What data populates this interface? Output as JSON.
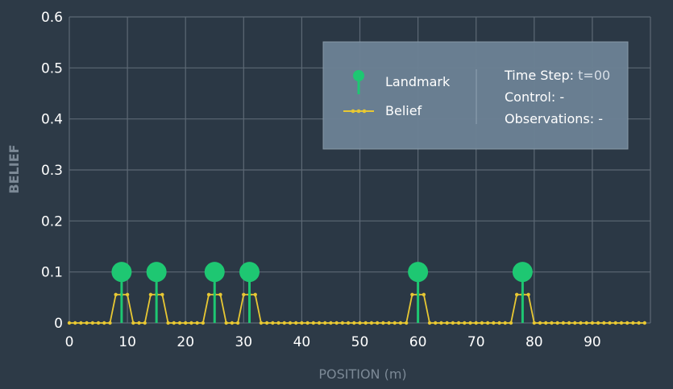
{
  "chart_data": {
    "type": "line",
    "xlabel": "POSITION (m)",
    "ylabel": "BELIEF",
    "xlim": [
      0,
      100
    ],
    "ylim": [
      0,
      0.6
    ],
    "x_ticks": [
      0,
      10,
      20,
      30,
      40,
      50,
      60,
      70,
      80,
      90
    ],
    "y_ticks": [
      0,
      0.1,
      0.2,
      0.3,
      0.4,
      0.5,
      0.6
    ],
    "y_tick_labels": [
      "0",
      "0.1",
      "0.2",
      "0.3",
      "0.4",
      "0.5",
      "0.6"
    ],
    "grid": true,
    "legend_position": "top-right",
    "series": [
      {
        "name": "Belief",
        "color": "#e8c833",
        "x": [
          0,
          1,
          2,
          3,
          4,
          5,
          6,
          7,
          8,
          9,
          10,
          11,
          12,
          13,
          14,
          15,
          16,
          17,
          18,
          19,
          20,
          21,
          22,
          23,
          24,
          25,
          26,
          27,
          28,
          29,
          30,
          31,
          32,
          33,
          34,
          35,
          36,
          37,
          38,
          39,
          40,
          41,
          42,
          43,
          44,
          45,
          46,
          47,
          48,
          49,
          50,
          51,
          52,
          53,
          54,
          55,
          56,
          57,
          58,
          59,
          60,
          61,
          62,
          63,
          64,
          65,
          66,
          67,
          68,
          69,
          70,
          71,
          72,
          73,
          74,
          75,
          76,
          77,
          78,
          79,
          80,
          81,
          82,
          83,
          84,
          85,
          86,
          87,
          88,
          89,
          90,
          91,
          92,
          93,
          94,
          95,
          96,
          97,
          98,
          99
        ],
        "values": [
          0,
          0,
          0,
          0,
          0,
          0,
          0,
          0,
          0.0556,
          0.0556,
          0.0556,
          0,
          0,
          0,
          0.0556,
          0.0556,
          0.0556,
          0,
          0,
          0,
          0,
          0,
          0,
          0,
          0.0556,
          0.0556,
          0.0556,
          0,
          0,
          0,
          0.0556,
          0.0556,
          0.0556,
          0,
          0,
          0,
          0,
          0,
          0,
          0,
          0,
          0,
          0,
          0,
          0,
          0,
          0,
          0,
          0,
          0,
          0,
          0,
          0,
          0,
          0,
          0,
          0,
          0,
          0,
          0.0556,
          0.0556,
          0.0556,
          0,
          0,
          0,
          0,
          0,
          0,
          0,
          0,
          0,
          0,
          0,
          0,
          0,
          0,
          0,
          0.0556,
          0.0556,
          0.0556,
          0,
          0,
          0,
          0,
          0,
          0,
          0,
          0,
          0,
          0,
          0,
          0,
          0,
          0,
          0,
          0,
          0,
          0,
          0,
          0
        ]
      }
    ],
    "landmarks": {
      "name": "Landmark",
      "color": "#1ec772",
      "positions": [
        9,
        15,
        25,
        31,
        60,
        78
      ],
      "height": 0.1
    },
    "legend": {
      "landmark_label": "Landmark",
      "belief_label": "Belief",
      "time_step_label": "Time Step:",
      "time_step_value": "t=00",
      "control_label": "Control: -",
      "observations_label": "Observations: -"
    }
  }
}
